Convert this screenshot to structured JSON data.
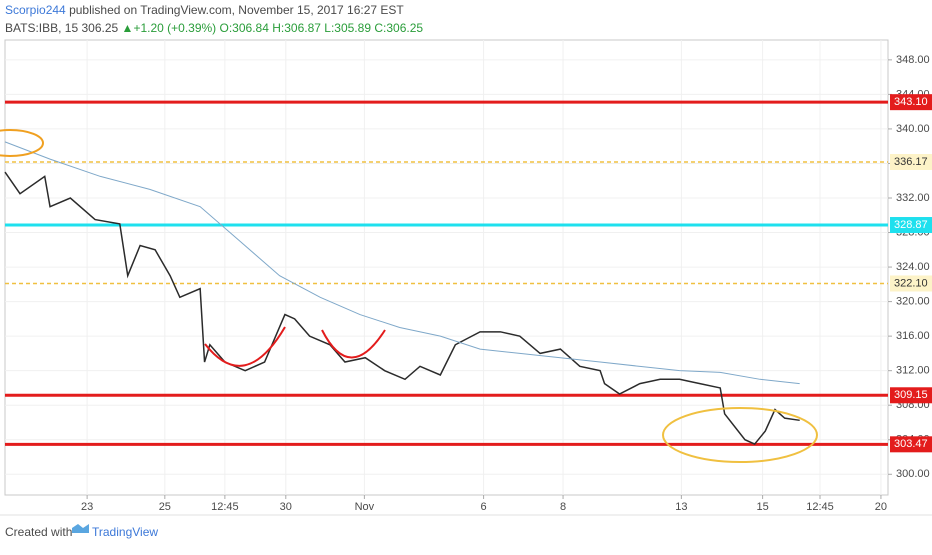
{
  "header": {
    "author": "Scorpio244",
    "published": "published on TradingView.com, November 15, 2017 16:27 EST",
    "symbol": "BATS:IBB, 15",
    "last": "306.25",
    "change": "+1.20 (+0.39%)",
    "open": "O:306.84",
    "high": "H:306.87",
    "low": "L:305.89",
    "close": "C:306.25"
  },
  "footer": {
    "created": "Created with",
    "brand": "TradingView"
  },
  "chart_data": {
    "type": "line",
    "xlim": [
      0,
      100
    ],
    "ylim": [
      297.6,
      350.3
    ],
    "xticks": [
      {
        "value": 9.3,
        "label": "23"
      },
      {
        "value": 18.1,
        "label": "25"
      },
      {
        "value": 24.9,
        "label": "12:45"
      },
      {
        "value": 31.8,
        "label": "30"
      },
      {
        "value": 40.7,
        "label": "Nov"
      },
      {
        "value": 54.2,
        "label": "6"
      },
      {
        "value": 63.2,
        "label": "8"
      },
      {
        "value": 76.6,
        "label": "13"
      },
      {
        "value": 85.8,
        "label": "15"
      },
      {
        "value": 92.3,
        "label": "12:45"
      },
      {
        "value": 99.2,
        "label": "20"
      }
    ],
    "yticks": [
      {
        "value": 300,
        "label": "300.00"
      },
      {
        "value": 304,
        "label": "304.00"
      },
      {
        "value": 308,
        "label": "308.00"
      },
      {
        "value": 312,
        "label": "312.00"
      },
      {
        "value": 316,
        "label": "316.00"
      },
      {
        "value": 320,
        "label": "320.00"
      },
      {
        "value": 324,
        "label": "324.00"
      },
      {
        "value": 328,
        "label": "328.00"
      },
      {
        "value": 332,
        "label": "332.00"
      },
      {
        "value": 336,
        "label": "336.00"
      },
      {
        "value": 340,
        "label": "340.00"
      },
      {
        "value": 344,
        "label": "344.00"
      },
      {
        "value": 348,
        "label": "348.00"
      }
    ],
    "grid": true,
    "series": [
      {
        "color": "#2b2b2b",
        "x": [
          0,
          1.7,
          4.5,
          5.1,
          7.4,
          10.2,
          13.0,
          13.9,
          15.3,
          17.0,
          18.7,
          19.8,
          22.1,
          22.6,
          23.2,
          24.9,
          27.2,
          29.4,
          31.7,
          32.8,
          34.5,
          36.8,
          38.5,
          40.8,
          43.0,
          45.3,
          47.0,
          49.3,
          51.0,
          53.8,
          56.1,
          58.3,
          60.6,
          62.9,
          65.1,
          67.4,
          67.9,
          69.6,
          71.9,
          74.2,
          76.4,
          78.7,
          81.0,
          81.5,
          83.8,
          84.9,
          86.1,
          87.2,
          88.3,
          90.0
        ],
        "values": [
          335,
          332.5,
          334.5,
          331,
          332,
          329.5,
          329,
          323,
          326.5,
          326,
          323,
          320.5,
          321.5,
          313,
          315,
          313,
          312,
          313,
          318.5,
          318,
          316,
          315,
          313,
          313.5,
          312,
          311,
          312.5,
          311.5,
          315,
          316.5,
          316.5,
          316,
          314,
          314.5,
          312.5,
          312,
          310.5,
          309.3,
          310.5,
          311,
          311,
          310.5,
          310,
          307,
          304,
          303.5,
          305,
          307.5,
          306.5,
          306.25
        ]
      },
      {
        "color": "#7fa8c9",
        "x": [
          0,
          5.1,
          10.8,
          16.4,
          22.1,
          26.6,
          31.1,
          35.7,
          40.2,
          44.7,
          49.3,
          53.8,
          58.3,
          62.9,
          67.4,
          71.9,
          76.4,
          81.0,
          85.5,
          90.0
        ],
        "values": [
          338.5,
          336.5,
          334.5,
          333,
          331,
          327,
          323,
          320.5,
          318.5,
          317,
          316,
          314.5,
          314,
          313.5,
          313,
          312.5,
          312,
          311.8,
          311,
          310.5
        ]
      }
    ],
    "levels": [
      {
        "value": 343.1,
        "label": "343.10",
        "color": "#e31c1c",
        "dashed": false
      },
      {
        "value": 336.17,
        "label": "336.17",
        "color": "#f0c040",
        "dashed": true
      },
      {
        "value": 328.87,
        "label": "328.87",
        "color": "#1ee0ee",
        "dashed": false
      },
      {
        "value": 322.1,
        "label": "322.10",
        "color": "#f0c040",
        "dashed": true
      },
      {
        "value": 309.15,
        "label": "309.15",
        "color": "#e31c1c",
        "dashed": false
      },
      {
        "value": 303.47,
        "label": "303.47",
        "color": "#e31c1c",
        "dashed": false
      }
    ]
  }
}
